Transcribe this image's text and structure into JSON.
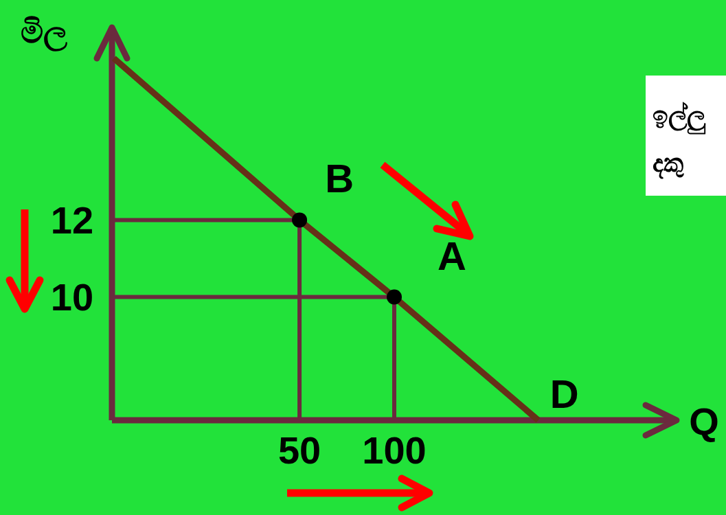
{
  "chart_data": {
    "type": "line",
    "xlabel": "Q",
    "ylabel": "මිල",
    "xlim": [
      -49,
      249
    ],
    "ylim": [
      6.8,
      17
    ],
    "xticks": [
      50,
      100
    ],
    "yticks": [
      12,
      10
    ],
    "grid": false,
    "series": [
      {
        "color": "#663018",
        "marker": "none",
        "x": [
          -48,
          50,
          100,
          176
        ],
        "values": [
          16.2,
          12,
          10,
          6.8
        ]
      },
      {
        "type": "scatter",
        "color": "#000000",
        "marker": "circle",
        "x": [
          50,
          100
        ],
        "values": [
          12,
          10
        ]
      }
    ],
    "annotations": [
      {
        "text": "B",
        "x": 50,
        "y": 12
      },
      {
        "text": "A",
        "x": 100,
        "y": 10
      },
      {
        "text": "D",
        "x": 176,
        "y": 6.8
      },
      "ඉල්ලු\nදකු"
    ]
  }
}
